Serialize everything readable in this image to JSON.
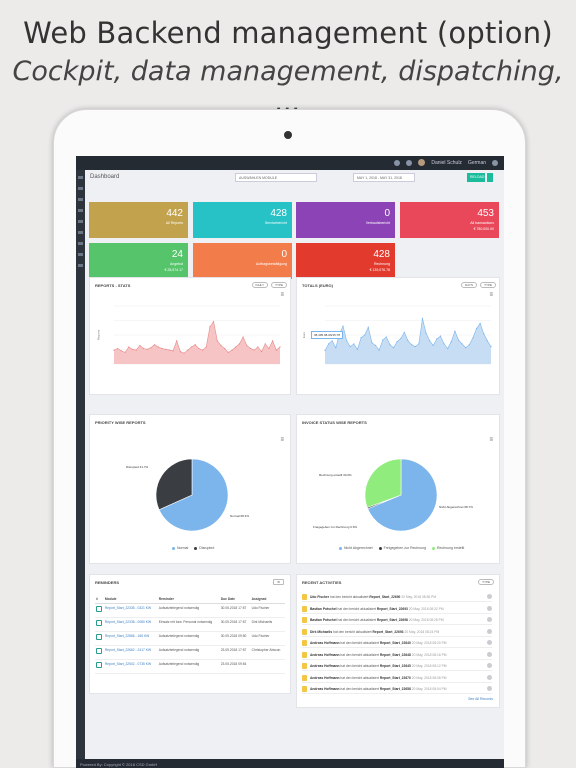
{
  "promo": {
    "title": "Web Backend management (option)",
    "subtitle": "Cockpit, data management, dispatching, ..."
  },
  "topbar": {
    "user_name": "Daniel Schulz",
    "language": "German"
  },
  "dashboard": {
    "title": "Dashboard",
    "filter_label": "AUSWÄHLEN MODULE",
    "date_range": "MAY 1, 2018 - MAY 31, 2018",
    "reload_label": "RELOAD"
  },
  "tiles": [
    {
      "value": "442",
      "label": "All Reports",
      "label2": "",
      "color": "#c2a24c"
    },
    {
      "value": "428",
      "label": "Servicebericht",
      "label2": "",
      "color": "#26c2c6"
    },
    {
      "value": "0",
      "label": "Verkaufsbericht",
      "label2": "",
      "color": "#8b43b6"
    },
    {
      "value": "453",
      "label": "All transactions",
      "label2": "€ 780,000.00",
      "color": "#e8485a"
    },
    {
      "value": "24",
      "label": "Angebot",
      "label2": "€ 28,574.17",
      "color": "#55c46a"
    },
    {
      "value": "0",
      "label": "Auftragsbestätigung",
      "label2": "",
      "color": "#f27d4b"
    },
    {
      "value": "428",
      "label": "Rechnung",
      "label2": "€ 139,076.78",
      "color": "#e23b2e"
    }
  ],
  "panels": {
    "reports_stats": {
      "title": "REPORTS - STATS",
      "btn1": "DAILY",
      "btn2": "TYPE",
      "yaxis": "Reports"
    },
    "totals": {
      "title": "TOTALS (EURO)",
      "btn1": "DAYS",
      "btn2": "TYPE",
      "tooltip": "38,495.08-09/15:78",
      "yaxis": "Euro"
    },
    "priority": {
      "title": "PRIORITY WISE REPORTS",
      "label_a": "Disrupted 31.7%",
      "label_b": "Normal 68.3%",
      "legend": [
        "Normal",
        "Disrupted"
      ]
    },
    "invoice": {
      "title": "INVOICE STATUS WISE REPORTS",
      "label_a": "Rechnung erstellt 30.6%",
      "label_b": "Freigegeben zur Rechnung 0.6%",
      "label_c": "Nicht Abgerechnet 68.7%",
      "legend": [
        "Nicht Abgerechnet",
        "Freigegeben zur Rechnung",
        "Rechnung erstellt"
      ]
    },
    "reminders": {
      "title": "REMINDERS",
      "btn": "⚙"
    },
    "recent": {
      "title": "RECENT ACTIVITIES",
      "btn": "TYPE",
      "see_all": "See All Records"
    }
  },
  "chart_data": [
    {
      "type": "area",
      "title": "REPORTS - STATS",
      "ylabel": "Reports",
      "ylim": [
        0,
        75
      ],
      "values": [
        18,
        20,
        17,
        15,
        22,
        19,
        18,
        24,
        20,
        19,
        21,
        25,
        22,
        20,
        19,
        18,
        17,
        30,
        16,
        14,
        18,
        22,
        25,
        20,
        18,
        22,
        48,
        55,
        30,
        24,
        20,
        15,
        18,
        22,
        26,
        35,
        24,
        20,
        18,
        22,
        16,
        26,
        20,
        30,
        18,
        22
      ]
    },
    {
      "type": "area",
      "title": "TOTALS (EURO)",
      "ylabel": "Euro",
      "ylim": [
        0,
        15000
      ],
      "values": [
        3500,
        5200,
        6000,
        4200,
        7800,
        9800,
        6000,
        4500,
        5200,
        3800,
        6800,
        7500,
        9500,
        5500,
        4800,
        3600,
        6200,
        7000,
        5000,
        4200,
        5800,
        6600,
        8200,
        6000,
        5000,
        4500,
        5200,
        11800,
        8000,
        6000,
        4800,
        6500,
        7200,
        5200,
        4000,
        5800,
        8500,
        6200,
        5200,
        4200,
        5000,
        6800,
        9200,
        10500,
        7800,
        6000,
        4500
      ]
    },
    {
      "type": "pie",
      "title": "PRIORITY WISE REPORTS",
      "categories": [
        "Normal",
        "Disrupted"
      ],
      "values": [
        68.3,
        31.7
      ],
      "colors": [
        "#7cb5ec",
        "#3a3d42"
      ]
    },
    {
      "type": "pie",
      "title": "INVOICE STATUS WISE REPORTS",
      "categories": [
        "Nicht Abgerechnet",
        "Freigegeben zur Rechnung",
        "Rechnung erstellt"
      ],
      "values": [
        68.7,
        0.6,
        30.6
      ],
      "colors": [
        "#7cb5ec",
        "#3a3d42",
        "#90ed7d"
      ]
    }
  ],
  "reminders_table": {
    "headers": [
      "#",
      "Module",
      "Reminder",
      "Due Date",
      "Assigned"
    ],
    "rows": [
      {
        "module": "Report_Start_22335 - 0321 KW",
        "reminder": "Aufsatzbelegend notwendig",
        "due": "30.05.2018 17:57",
        "assigned": "Udo Fischer"
      },
      {
        "module": "Report_Start_22336 - 0080 KW",
        "reminder": "Einsatz mit bzw. Personal notwendig",
        "due": "30.05.2018 17:57",
        "assigned": "Dirk Michaelis"
      },
      {
        "module": "Report_Start_22866 - 166 KW",
        "reminder": "Aufsatzbelegend notwendig",
        "due": "30.05.2018 09:50",
        "assigned": "Udo Fischer"
      },
      {
        "module": "Report_Start_22662 - 2417 KW",
        "reminder": "Aufsatzbelegend notwendig",
        "due": "23.05.2018 17:57",
        "assigned": "Christopher Abscon"
      },
      {
        "module": "Report_Start_22502 - 0735 KW",
        "reminder": "Aufsatzbelegend notwendig",
        "due": "23.05.2018 09:54",
        "assigned": ""
      }
    ]
  },
  "activities": [
    {
      "name": "Udo Fischer",
      "action": "hat den bericht aktualisiert",
      "ref": "Report_Start_22690",
      "time": "20 May, 2018 08:36 PM"
    },
    {
      "name": "Bastian Potschel",
      "action": "hat den bericht aktualisiert",
      "ref": "Report_Start_22693",
      "time": "20 May, 2018 08:32 PM"
    },
    {
      "name": "Bastian Potschel",
      "action": "hat den bericht aktualisiert",
      "ref": "Report_Start_22698",
      "time": "20 May, 2018 08:28 PM"
    },
    {
      "name": "Dirk Michaelis",
      "action": "hat den bericht aktualisiert",
      "ref": "Report_Start_22693",
      "time": "20 May, 2018 08:24 PM"
    },
    {
      "name": "Andreas Hoffmann",
      "action": "hat den bericht aktualisiert",
      "ref": "Report_Start_22640",
      "time": "20 May, 2018 08:20 PM"
    },
    {
      "name": "Andreas Hoffmann",
      "action": "hat den bericht aktualisiert",
      "ref": "Report_Start_22648",
      "time": "20 May, 2018 08:16 PM"
    },
    {
      "name": "Andreas Hoffmann",
      "action": "hat den bericht aktualisiert",
      "ref": "Report_Start_22645",
      "time": "20 May, 2018 08:12 PM"
    },
    {
      "name": "Andreas Hoffmann",
      "action": "hat den bericht aktualisiert",
      "ref": "Report_Start_22670",
      "time": "20 May, 2018 08:08 PM"
    },
    {
      "name": "Andreas Hoffmann",
      "action": "hat den bericht aktualisiert",
      "ref": "Report_Start_22658",
      "time": "20 May, 2018 08:04 PM"
    }
  ],
  "footer": {
    "text": "Powered By: Copyright © 2018 CSD GmbH"
  }
}
